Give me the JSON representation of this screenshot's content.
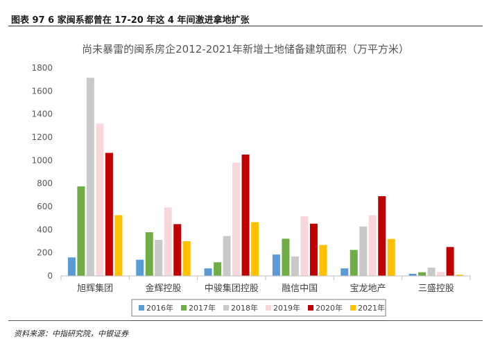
{
  "header": {
    "title": "图表 97 6 家闽系都曾在 17-20 年这 4 年间激进拿地扩张"
  },
  "footer": {
    "source": "资料来源：中指研究院，中银证券"
  },
  "chart_data": {
    "type": "bar",
    "title": "尚未暴雷的闽系房企2012-2021年新增土地储备建筑面积（万平方米）",
    "xlabel": "",
    "ylabel": "",
    "ylim": [
      0,
      1800
    ],
    "yticks": [
      0,
      200,
      400,
      600,
      800,
      1000,
      1200,
      1400,
      1600,
      1800
    ],
    "grid": false,
    "legend_position": "bottom",
    "categories": [
      "旭辉集团",
      "金辉控股",
      "中骏集团控股",
      "融信中国",
      "宝龙地产",
      "三盛控股"
    ],
    "series": [
      {
        "name": "2016年",
        "color": "#5b9bd5",
        "values": [
          160,
          140,
          65,
          185,
          65,
          18
        ]
      },
      {
        "name": "2017年",
        "color": "#70ad47",
        "values": [
          775,
          378,
          118,
          322,
          225,
          32
        ]
      },
      {
        "name": "2018年",
        "color": "#c9c9c9",
        "values": [
          1715,
          312,
          345,
          168,
          428,
          72
        ]
      },
      {
        "name": "2019年",
        "color": "#f8d7da",
        "values": [
          1318,
          592,
          980,
          515,
          525,
          35
        ]
      },
      {
        "name": "2020年",
        "color": "#c00000",
        "values": [
          1065,
          448,
          1050,
          452,
          690,
          250
        ]
      },
      {
        "name": "2021年",
        "color": "#ffc000",
        "values": [
          525,
          300,
          465,
          268,
          320,
          10
        ]
      }
    ]
  }
}
